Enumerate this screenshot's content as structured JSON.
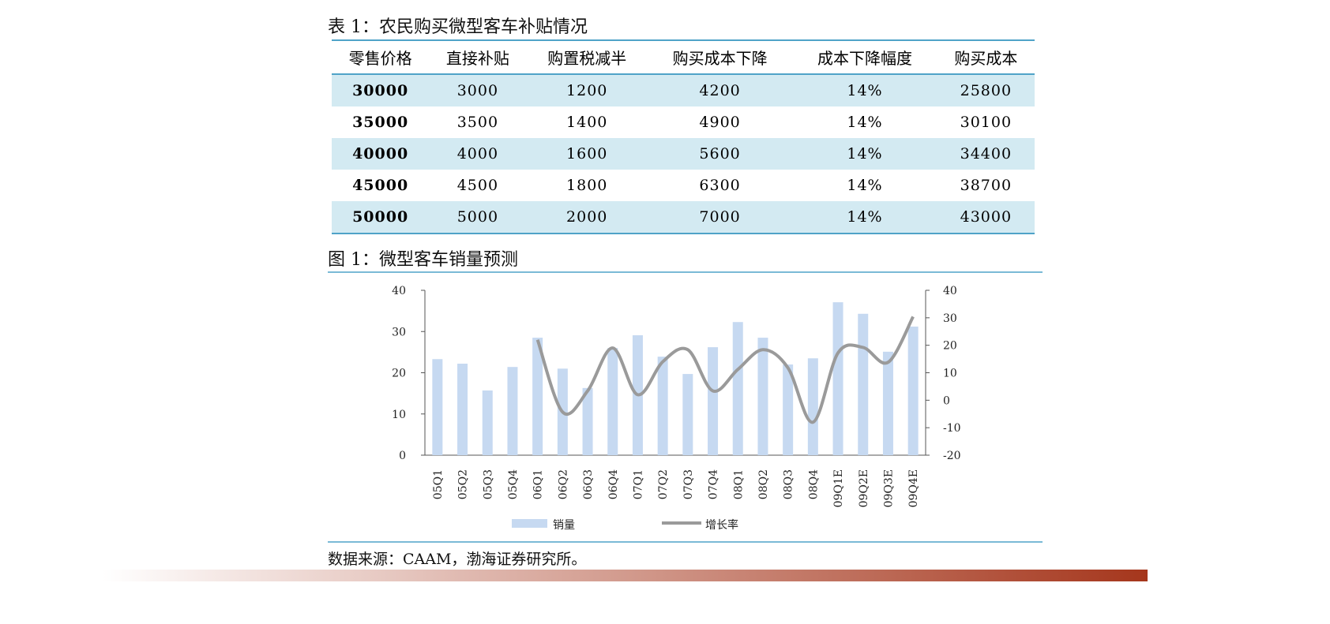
{
  "table": {
    "title": "表 1：农民购买微型客车补贴情况",
    "header": [
      "零售价格",
      "直接补贴",
      "购置税减半",
      "购买成本下降",
      "成本下降幅度",
      "购买成本"
    ],
    "rows": [
      [
        "30000",
        "3000",
        "1200",
        "4200",
        "14%",
        "25800"
      ],
      [
        "35000",
        "3500",
        "1400",
        "4900",
        "14%",
        "30100"
      ],
      [
        "40000",
        "4000",
        "1600",
        "5600",
        "14%",
        "34400"
      ],
      [
        "45000",
        "4500",
        "1800",
        "6300",
        "14%",
        "38700"
      ],
      [
        "50000",
        "5000",
        "2000",
        "7000",
        "14%",
        "43000"
      ]
    ]
  },
  "figure": {
    "title": "图 1：微型客车销量预测",
    "chart_data": {
      "type": "bar-line",
      "categories": [
        "05Q1",
        "05Q2",
        "05Q3",
        "05Q4",
        "06Q1",
        "06Q2",
        "06Q3",
        "06Q4",
        "07Q1",
        "07Q2",
        "07Q3",
        "07Q4",
        "08Q1",
        "08Q2",
        "08Q3",
        "08Q4",
        "09Q1E",
        "09Q2E",
        "09Q3E",
        "09Q4E"
      ],
      "series": [
        {
          "name": "销量",
          "color": "#c6d9f1",
          "values": [
            23.3,
            22.2,
            15.7,
            21.4,
            28.5,
            21,
            16.3,
            26,
            29.1,
            23.9,
            19.7,
            26.2,
            32.3,
            28.5,
            22,
            23.5,
            37.1,
            34.3,
            25.1,
            31.2
          ]
        },
        {
          "name": "增长率",
          "color": "#9a9a9a",
          "axis": "y2",
          "values": [
            null,
            null,
            null,
            null,
            22,
            -4.3,
            3.4,
            19,
            2,
            14,
            18.4,
            3.4,
            11.2,
            18.4,
            11.8,
            -8,
            17.2,
            19.2,
            13.8,
            30.4
          ]
        }
      ],
      "ylim": [
        0,
        40
      ],
      "yticks": [
        0,
        10,
        20,
        30,
        40
      ],
      "y2lim": [
        -20,
        40
      ],
      "y2ticks": [
        -20,
        -10,
        0,
        10,
        20,
        30,
        40
      ]
    }
  },
  "source": "数据来源：CAAM，渤海证券研究所。"
}
